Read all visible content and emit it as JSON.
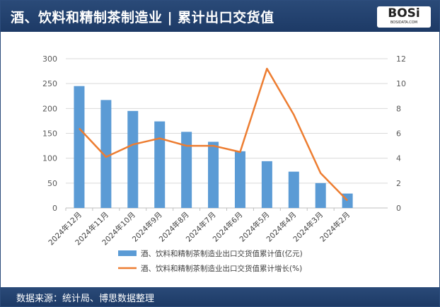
{
  "header": {
    "title": "酒、饮料和精制茶制造业 | 累计出口交货值",
    "logo_text": "BOSi",
    "logo_sub": "BOSIDATA.COM"
  },
  "footer": {
    "source": "数据来源：统计局、博思数据整理"
  },
  "colors": {
    "bar": "#5b9bd5",
    "line": "#ed7d31",
    "header": "#1f3c6a"
  },
  "chart_data": {
    "type": "bar+line",
    "categories": [
      "2024年12月",
      "2024年11月",
      "2024年10月",
      "2024年9月",
      "2024年8月",
      "2024年7月",
      "2024年6月",
      "2024年5月",
      "2024年4月",
      "2024年3月",
      "2024年2月"
    ],
    "series": [
      {
        "name": "酒、饮料和精制茶制造业出口交货值累计值(亿元)",
        "type": "bar",
        "axis": "left",
        "values": [
          245,
          217,
          195,
          174,
          153,
          133,
          114,
          94,
          73,
          50,
          29
        ]
      },
      {
        "name": "酒、饮料和精制茶制造业出口交货值累计增长(%)",
        "type": "line",
        "axis": "right",
        "values": [
          6.4,
          4.1,
          5.1,
          5.6,
          5.0,
          5.0,
          4.5,
          11.2,
          7.5,
          2.8,
          0.6
        ]
      }
    ],
    "left_axis": {
      "ylim": [
        0,
        300
      ],
      "ticks": [
        0,
        50,
        100,
        150,
        200,
        250,
        300
      ]
    },
    "right_axis": {
      "ylim": [
        0,
        12
      ],
      "ticks": [
        0,
        2,
        4,
        6,
        8,
        10,
        12
      ]
    },
    "grid": true,
    "legend": "bottom"
  }
}
